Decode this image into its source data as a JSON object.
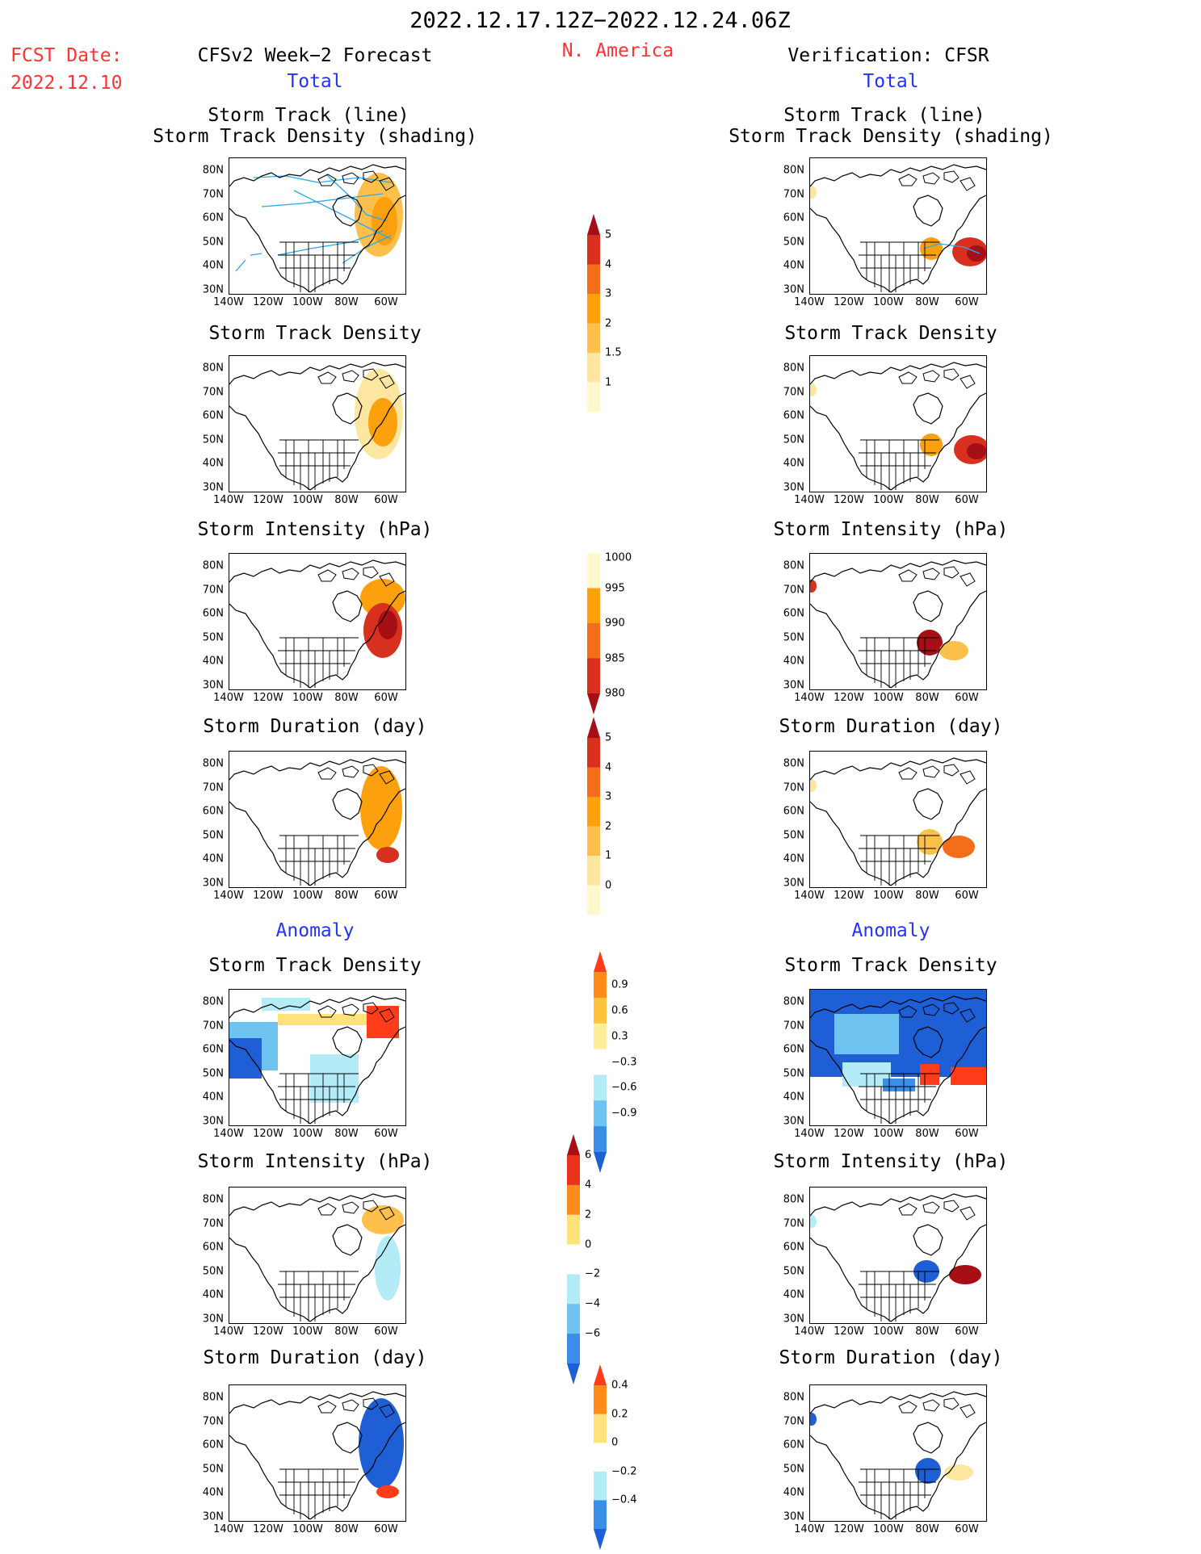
{
  "header": {
    "period": "2022.12.17.12Z−2022.12.24.06Z",
    "region": "N. America",
    "fcst_label": "FCST Date:",
    "fcst_date": "2022.12.10",
    "left_title": "CFSv2 Week−2 Forecast",
    "right_title": "Verification: CFSR"
  },
  "sections": {
    "total": "Total",
    "anomaly": "Anomaly"
  },
  "panel_titles": {
    "track_line": "Storm Track (line)",
    "track_shading": "Storm Track Density (shading)",
    "density": "Storm Track Density",
    "intensity": "Storm Intensity (hPa)",
    "duration": "Storm Duration (day)"
  },
  "axes": {
    "lat_labels": [
      "80N",
      "70N",
      "60N",
      "50N",
      "40N",
      "30N"
    ],
    "lon_labels": [
      "140W",
      "120W",
      "100W",
      "80W",
      "60W"
    ]
  },
  "colorbars": {
    "density_total": {
      "labels": [
        "5",
        "4",
        "3",
        "2",
        "1.5",
        "1"
      ],
      "colors": [
        "#a50f15",
        "#d7301f",
        "#f46d1b",
        "#fda00d",
        "#fdc04d",
        "#fde6a0",
        "#fff8cc"
      ]
    },
    "intensity_total": {
      "labels": [
        "1000",
        "995",
        "990",
        "985",
        "980"
      ],
      "colors": [
        "#fff8cc",
        "#fda00d",
        "#f46d1b",
        "#d7301f",
        "#a50f15"
      ]
    },
    "duration_total": {
      "labels": [
        "5",
        "4",
        "3",
        "2",
        "1",
        "0"
      ],
      "colors": [
        "#a50f15",
        "#d7301f",
        "#f46d1b",
        "#fda00d",
        "#fdc04d",
        "#fde6a0",
        "#fff8cc"
      ]
    },
    "density_anom": {
      "labels": [
        "0.9",
        "0.6",
        "0.3",
        "−0.3",
        "−0.6",
        "−0.9"
      ],
      "colors": [
        "#ff3d1a",
        "#ff8c1a",
        "#ffc23d",
        "#ffee99",
        "#ffffff",
        "#b3ecf7",
        "#6fc3f0",
        "#3b8ee8",
        "#1f5fd6"
      ]
    },
    "intensity_anom": {
      "labels": [
        "6",
        "4",
        "2",
        "0",
        "−2",
        "−4",
        "−6"
      ],
      "colors": [
        "#a50f15",
        "#e8331a",
        "#ff8c1a",
        "#ffe27a",
        "#ffffff",
        "#b3ecf7",
        "#6fc3f0",
        "#3b8ee8",
        "#1f5fd6"
      ]
    },
    "duration_anom": {
      "labels": [
        "0.4",
        "0.2",
        "0",
        "−0.2",
        "−0.4"
      ],
      "colors": [
        "#ff3d1a",
        "#ff8c1a",
        "#ffe27a",
        "#ffffff",
        "#b3ecf7",
        "#3b8ee8",
        "#1f5fd6"
      ]
    }
  }
}
